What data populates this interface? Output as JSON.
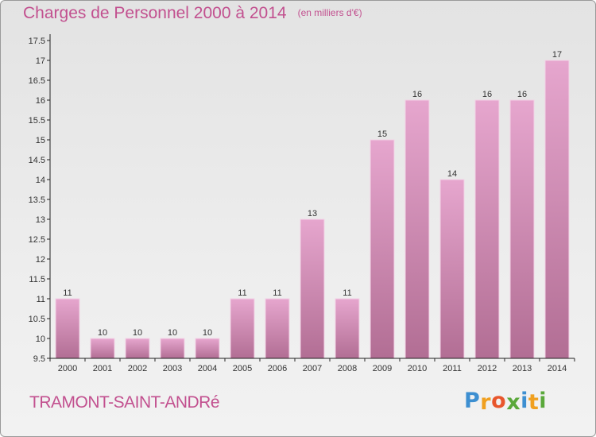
{
  "title": "Charges de Personnel 2000 à 2014",
  "subtitle": "(en milliers d'€)",
  "commune": "TRAMONT-SAINT-ANDRé",
  "logo": {
    "letters": [
      "P",
      "r",
      "o",
      "x",
      "i",
      "t",
      "i"
    ],
    "colors": [
      "#3d8fd1",
      "#f0a020",
      "#e8562c",
      "#5aa83a",
      "#3d8fd1",
      "#f0a020",
      "#5aa83a"
    ]
  },
  "colors": {
    "bar_top": "#e6a6ce",
    "bar_bottom": "#b26e94",
    "axis": "#222222",
    "text": "#333333",
    "accent": "#c2508f"
  },
  "chart_data": {
    "type": "bar",
    "title": "Charges de Personnel 2000 à 2014",
    "subtitle": "(en milliers d'€)",
    "categories": [
      "2000",
      "2001",
      "2002",
      "2003",
      "2004",
      "2005",
      "2006",
      "2007",
      "2008",
      "2009",
      "2010",
      "2011",
      "2012",
      "2013",
      "2014"
    ],
    "values": [
      11,
      10,
      10,
      10,
      10,
      11,
      11,
      13,
      11,
      15,
      16,
      14,
      16,
      16,
      17
    ],
    "value_labels": [
      "11",
      "10",
      "10",
      "10",
      "10",
      "11",
      "11",
      "13",
      "11",
      "15",
      "16",
      "14",
      "16",
      "16",
      "17"
    ],
    "yticks": [
      "9.5",
      "10",
      "10.5",
      "11",
      "11.5",
      "12",
      "12.5",
      "13",
      "13.5",
      "14",
      "14.5",
      "15",
      "15.5",
      "16",
      "16.5",
      "17",
      "17.5"
    ],
    "ylim": [
      9.5,
      17.5
    ],
    "grid": false,
    "legend": "none"
  }
}
